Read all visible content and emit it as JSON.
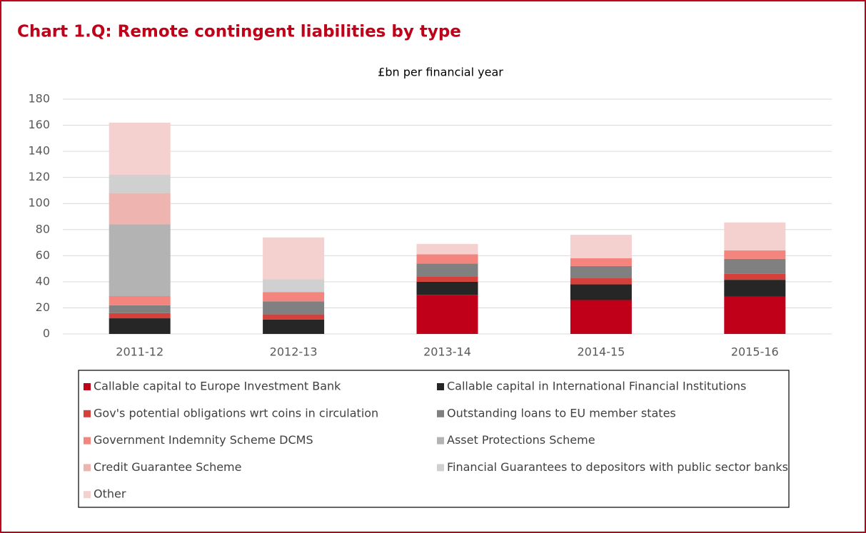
{
  "chart_data": {
    "type": "stacked_bar",
    "title": "Chart 1.Q: Remote contingent liabilities by type",
    "subtitle": "£bn per financial year",
    "categories": [
      "2011-12",
      "2012-13",
      "2013-14",
      "2014-15",
      "2015-16"
    ],
    "series": [
      {
        "name": "Callable capital to Europe Investment Bank",
        "color": "#c00018",
        "values": [
          0,
          0,
          30,
          26,
          28.5
        ]
      },
      {
        "name": "Callable capital in International Financial Institutions",
        "color": "#262626",
        "values": [
          12,
          11,
          10,
          12,
          13
        ]
      },
      {
        "name": "Gov's potential obligations wrt coins in circulation",
        "color": "#d6403a",
        "values": [
          4,
          4,
          4,
          5,
          4.5
        ]
      },
      {
        "name": "Outstanding loans to EU member states",
        "color": "#808080",
        "values": [
          6,
          10,
          10,
          9,
          11.5
        ]
      },
      {
        "name": "Government Indemnity Scheme DCMS",
        "color": "#f4857e",
        "values": [
          7,
          7,
          7,
          6,
          6.5
        ]
      },
      {
        "name": "Asset Protections Scheme",
        "color": "#b3b3b3",
        "values": [
          55,
          0,
          0,
          0,
          0
        ]
      },
      {
        "name": "Credit Guarantee Scheme",
        "color": "#eeb5b0",
        "values": [
          24,
          0,
          0,
          0,
          0
        ]
      },
      {
        "name": "Financial Guarantees to depositors with public sector banks",
        "color": "#d0d0d0",
        "values": [
          14,
          10,
          0,
          0,
          0
        ]
      },
      {
        "name": "Other",
        "color": "#f4d0ce",
        "values": [
          40,
          32,
          8,
          18,
          21.5
        ]
      }
    ],
    "ylim": [
      0,
      180
    ],
    "yticks": [
      0,
      20,
      40,
      60,
      80,
      100,
      120,
      140,
      160,
      180
    ],
    "grid": true,
    "legend": "bottom"
  }
}
